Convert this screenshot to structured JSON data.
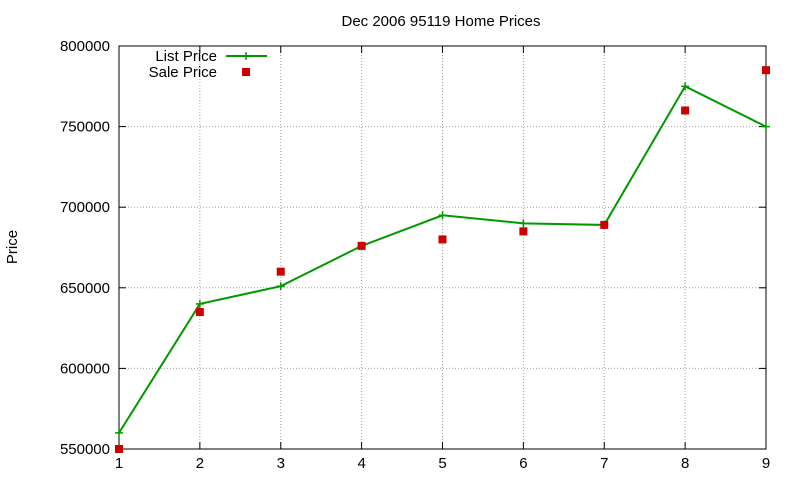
{
  "chart_data": {
    "type": "line",
    "title": "Dec 2006 95119 Home Prices",
    "xlabel": "",
    "ylabel": "Price",
    "x": [
      1,
      2,
      3,
      4,
      5,
      6,
      7,
      8,
      9
    ],
    "xlim": [
      1,
      9
    ],
    "ylim": [
      550000,
      800000
    ],
    "xticks": [
      "1",
      "2",
      "3",
      "4",
      "5",
      "6",
      "7",
      "8",
      "9"
    ],
    "yticks": [
      "550000",
      "600000",
      "650000",
      "700000",
      "750000",
      "800000"
    ],
    "grid": true,
    "legend_position": "top-left",
    "series": [
      {
        "name": "List Price",
        "style": "line with plus markers",
        "color": "#009900",
        "values": [
          560000,
          640000,
          651000,
          676000,
          695000,
          690000,
          689000,
          775000,
          750000
        ]
      },
      {
        "name": "Sale Price",
        "style": "square markers",
        "color": "#cc0000",
        "values": [
          550000,
          635000,
          660000,
          676000,
          680000,
          685000,
          689000,
          760000,
          785000
        ]
      }
    ]
  }
}
